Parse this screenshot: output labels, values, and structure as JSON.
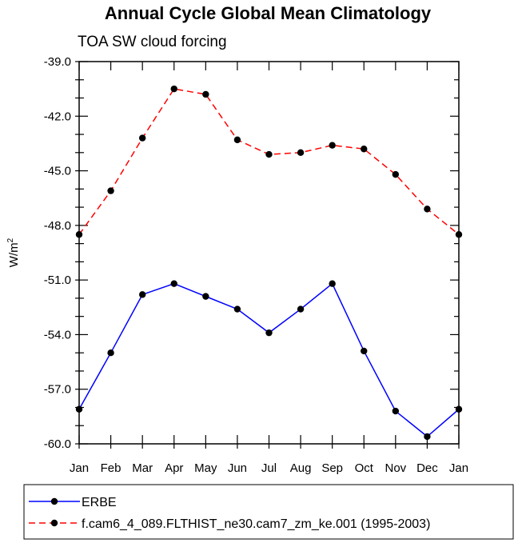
{
  "chart_data": {
    "type": "line",
    "title": "Annual Cycle Global Mean Climatology",
    "subtitle": "TOA SW cloud forcing",
    "ylabel": "W/m",
    "ylabel_sup": "2",
    "xlabel": "",
    "ylim": [
      -60.0,
      -39.0
    ],
    "yticks": [
      -39.0,
      -42.0,
      -45.0,
      -48.0,
      -51.0,
      -54.0,
      -57.0,
      -60.0
    ],
    "ytick_labels": [
      "-39.0",
      "-42.0",
      "-45.0",
      "-48.0",
      "-51.0",
      "-54.0",
      "-57.0",
      "-60.0"
    ],
    "categories": [
      "Jan",
      "Feb",
      "Mar",
      "Apr",
      "May",
      "Jun",
      "Jul",
      "Aug",
      "Sep",
      "Oct",
      "Nov",
      "Dec",
      "Jan"
    ],
    "series": [
      {
        "name": "ERBE",
        "color": "#0000ff",
        "dash": "solid",
        "values": [
          -58.1,
          -55.0,
          -51.8,
          -51.2,
          -51.9,
          -52.6,
          -53.9,
          -52.6,
          -51.2,
          -54.9,
          -58.2,
          -59.6,
          -58.1
        ]
      },
      {
        "name": "f.cam6_4_089.FLTHIST_ne30.cam7_zm_ke.001 (1995-2003)",
        "color": "#ff0000",
        "dash": "dashed",
        "values": [
          -48.5,
          -46.1,
          -43.2,
          -40.5,
          -40.8,
          -43.3,
          -44.1,
          -44.0,
          -43.6,
          -43.8,
          -45.2,
          -47.1,
          -48.5
        ]
      }
    ],
    "legend_location": "bottom"
  }
}
